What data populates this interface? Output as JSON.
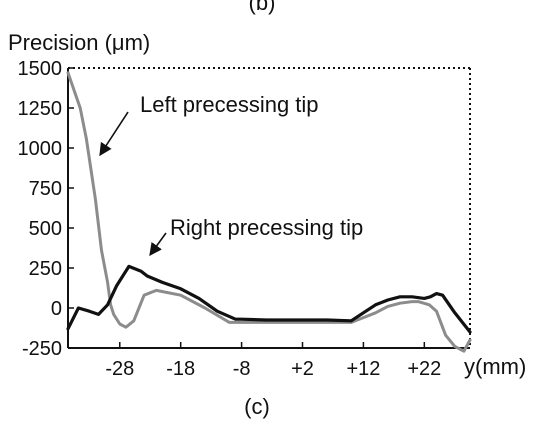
{
  "chart_data": {
    "type": "line",
    "panel_label_top": "(b)",
    "ylabel": "Precision (μm)",
    "xlabel": "y(mm)",
    "panel_label": "(c)",
    "xlim": [
      -36.5,
      29.5
    ],
    "ylim": [
      -250,
      1500
    ],
    "x_ticks": [
      -28,
      -18,
      -8,
      2,
      12,
      22
    ],
    "x_tick_labels": [
      "-28",
      "-18",
      "-8",
      "+2",
      "+12",
      "+22"
    ],
    "y_ticks": [
      1500,
      1250,
      1000,
      750,
      500,
      250,
      0,
      -250
    ],
    "y_tick_labels": [
      "1500",
      "1250",
      "1000",
      "750",
      "500",
      "250",
      "0",
      "-250"
    ],
    "grid": false,
    "series": [
      {
        "name": "Left precessing tip",
        "color": "#8c8c8c",
        "x": [
          -36.5,
          -34.5,
          -33.5,
          -32,
          -31,
          -30,
          -29.5,
          -29,
          -28,
          -27,
          -25.7,
          -24,
          -22,
          -18,
          -14,
          -10,
          -8,
          2,
          6,
          10,
          12,
          14,
          16,
          18,
          20,
          21,
          22.8,
          24,
          25.5,
          27,
          28.5,
          29.5
        ],
        "y": [
          1470,
          1250,
          1060,
          680,
          360,
          160,
          20,
          -40,
          -100,
          -120,
          -80,
          80,
          110,
          80,
          0,
          -90,
          -90,
          -90,
          -90,
          -90,
          -60,
          -30,
          10,
          30,
          40,
          40,
          20,
          -20,
          -170,
          -240,
          -270,
          -200
        ]
      },
      {
        "name": "Right precessing tip",
        "color": "#111111",
        "x": [
          -36.5,
          -34.8,
          -33,
          -31.5,
          -30,
          -28.5,
          -26.5,
          -24.5,
          -23.5,
          -21,
          -18,
          -15,
          -12,
          -9,
          -8,
          -4,
          2,
          6,
          10,
          12,
          14,
          16,
          18,
          20,
          22,
          23,
          24,
          25,
          27,
          29.5
        ],
        "y": [
          -130,
          0,
          -20,
          -40,
          20,
          140,
          260,
          230,
          200,
          160,
          120,
          60,
          -20,
          -70,
          -70,
          -75,
          -75,
          -75,
          -80,
          -30,
          20,
          50,
          70,
          70,
          60,
          70,
          90,
          80,
          -30,
          -150
        ]
      }
    ],
    "annotations": [
      {
        "text": "Left precessing tip",
        "arrow_to_series": "Left precessing tip"
      },
      {
        "text": "Right precessing tip",
        "arrow_to_series": "Right precessing tip"
      }
    ]
  }
}
